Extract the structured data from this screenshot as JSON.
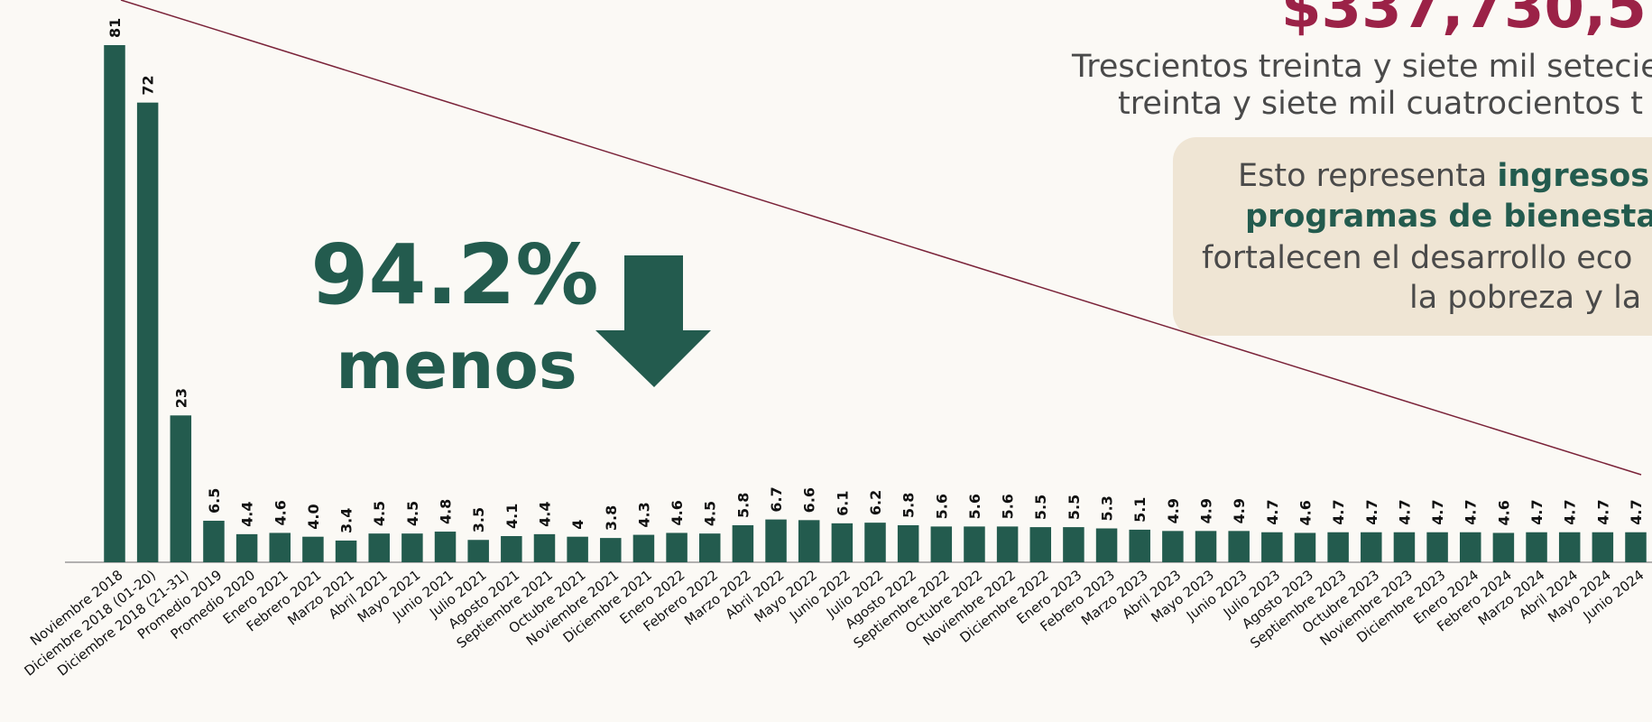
{
  "chart_data": {
    "type": "bar",
    "title": "$337,730,5",
    "subtitle": [
      "Trescientos treinta y siete mil setecie",
      "treinta y siete mil cuatrocientos t"
    ],
    "annotation": [
      "94.2%",
      "menos"
    ],
    "note": [
      [
        "Esto representa ",
        "ingresos"
      ],
      [
        "programas de bienesta"
      ],
      [
        "fortalecen el desarrollo eco"
      ],
      [
        "la pobreza y la"
      ]
    ],
    "color": "#235b4e",
    "categories": [
      "Noviembre 2018",
      "Diciembre 2018 (01-20)",
      "Diciembre 2018 (21-31)",
      "Promedio 2019",
      "Promedio 2020",
      "Enero 2021",
      "Febrero 2021",
      "Marzo 2021",
      "Abril 2021",
      "Mayo 2021",
      "Junio 2021",
      "Julio 2021",
      "Agosto 2021",
      "Septiembre 2021",
      "Octubre 2021",
      "Noviembre 2021",
      "Diciembre 2021",
      "Enero 2022",
      "Febrero 2022",
      "Marzo 2022",
      "Abril 2022",
      "Mayo 2022",
      "Junio 2022",
      "Julio 2022",
      "Agosto 2022",
      "Septiembre 2022",
      "Octubre 2022",
      "Noviembre 2022",
      "Diciembre 2022",
      "Enero 2023",
      "Febrero 2023",
      "Marzo 2023",
      "Abril 2023",
      "Mayo 2023",
      "Junio 2023",
      "Julio 2023",
      "Agosto 2023",
      "Septiembre 2023",
      "Octubre 2023",
      "Noviembre 2023",
      "Diciembre 2023",
      "Enero 2024",
      "Febrero 2024",
      "Marzo 2024",
      "Abril 2024",
      "Mayo 2024",
      "Junio 2024"
    ],
    "values": [
      81,
      72,
      23,
      6.5,
      4.4,
      4.6,
      4,
      3.4,
      4.5,
      4.5,
      4.8,
      3.5,
      4.1,
      4.4,
      4,
      3.8,
      4.3,
      4.6,
      4.5,
      5.8,
      6.7,
      6.6,
      6.1,
      6.2,
      5.8,
      5.6,
      5.6,
      5.6,
      5.5,
      5.5,
      5.3,
      5.1,
      4.9,
      4.9,
      4.9,
      4.7,
      4.6,
      4.7,
      4.7,
      4.7,
      4.7,
      4.7,
      4.6,
      4.7,
      4.7,
      4.7,
      4.7
    ],
    "value_labels": [
      "81",
      "72",
      "23",
      "6.5",
      "4.4",
      "4.6",
      "4.0",
      "3.4",
      "4.5",
      "4.5",
      "4.8",
      "3.5",
      "4.1",
      "4.4",
      "4",
      "3.8",
      "4.3",
      "4.6",
      "4.5",
      "5.8",
      "6.7",
      "6.6",
      "6.1",
      "6.2",
      "5.8",
      "5.6",
      "5.6",
      "5.6",
      "5.5",
      "5.5",
      "5.3",
      "5.1",
      "4.9",
      "4.9",
      "4.9",
      "4.7",
      "4.6",
      "4.7",
      "4.7",
      "4.7",
      "4.7",
      "4.7",
      "4.6",
      "4.7",
      "4.7",
      "4.7",
      "4.7"
    ]
  }
}
